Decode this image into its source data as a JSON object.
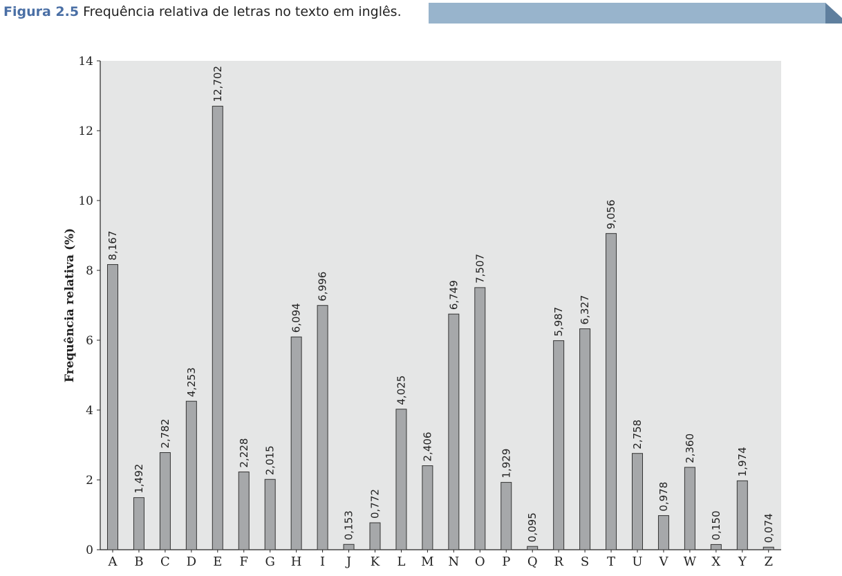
{
  "figure": {
    "label": "Figura 2.5",
    "caption": "Frequência relativa de letras no texto em inglês."
  },
  "colors": {
    "label": "#4a6fa5",
    "band": "#98b4cc",
    "band_dark": "#5f7f9e",
    "plot_bg": "#e5e6e6",
    "bar_fill": "#a6a8aa",
    "bar_stroke": "#333333"
  },
  "chart_data": {
    "type": "bar",
    "ylabel": "Frequência relativa (%)",
    "xlabel": "",
    "ylim": [
      0,
      14
    ],
    "yticks": [
      0,
      2,
      4,
      6,
      8,
      10,
      12,
      14
    ],
    "grid": false,
    "categories": [
      "A",
      "B",
      "C",
      "D",
      "E",
      "F",
      "G",
      "H",
      "I",
      "J",
      "K",
      "L",
      "M",
      "N",
      "O",
      "P",
      "Q",
      "R",
      "S",
      "T",
      "U",
      "V",
      "W",
      "X",
      "Y",
      "Z"
    ],
    "values": [
      8.167,
      1.492,
      2.782,
      4.253,
      12.702,
      2.228,
      2.015,
      6.094,
      6.996,
      0.153,
      0.772,
      4.025,
      2.406,
      6.749,
      7.507,
      1.929,
      0.095,
      5.987,
      6.327,
      9.056,
      2.758,
      0.978,
      2.36,
      0.15,
      1.974,
      0.074
    ],
    "value_labels": [
      "8,167",
      "1,492",
      "2,782",
      "4,253",
      "12,702",
      "2,228",
      "2,015",
      "6,094",
      "6,996",
      "0,153",
      "0,772",
      "4,025",
      "2,406",
      "6,749",
      "7,507",
      "1,929",
      "0,095",
      "5,987",
      "6,327",
      "9,056",
      "2,758",
      "0,978",
      "2,360",
      "0,150",
      "1,974",
      "0,074"
    ]
  }
}
